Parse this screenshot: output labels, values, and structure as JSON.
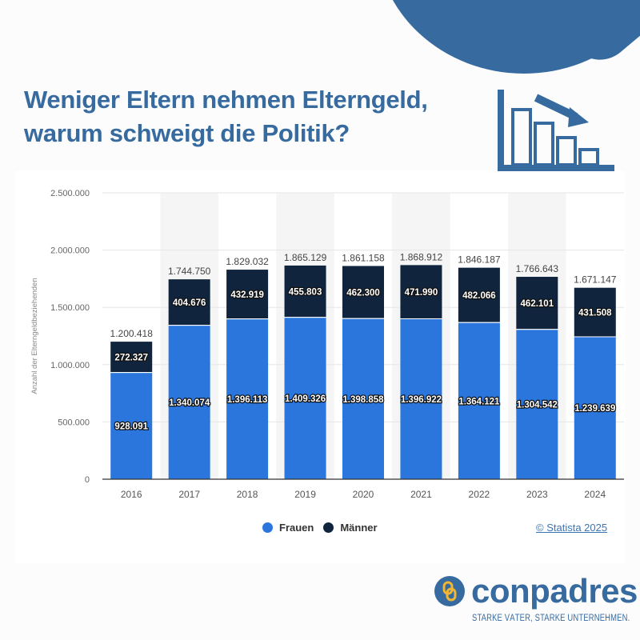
{
  "header": {
    "title_line1": "Weniger Eltern nehmen Elterngeld,",
    "title_line2": "warum schweigt die Politik?",
    "decor_icon": "declining-bar-chart-icon"
  },
  "colors": {
    "brand_blue": "#376b9f",
    "frauen": "#2a76dc",
    "maenner": "#10253d",
    "band": "#f5f5f6",
    "credit_link": "#3c75b5"
  },
  "chart_data": {
    "type": "bar",
    "stacked": true,
    "title": "",
    "xlabel": "",
    "ylabel": "Anzahl der Elterngeldbeziehenden",
    "ylim": [
      0,
      2500000
    ],
    "yticks": [
      0,
      500000,
      1000000,
      1500000,
      2000000,
      2500000
    ],
    "ytick_labels": [
      "0",
      "500.000",
      "1.000.000",
      "1.500.000",
      "2.000.000",
      "2.500.000"
    ],
    "grid": true,
    "categories": [
      "2016",
      "2017",
      "2018",
      "2019",
      "2020",
      "2021",
      "2022",
      "2023",
      "2024"
    ],
    "series": [
      {
        "name": "Frauen",
        "values": [
          928091,
          1340074,
          1396113,
          1409326,
          1398858,
          1396922,
          1364121,
          1304542,
          1239639
        ],
        "labels": [
          "928.091",
          "1.340.074",
          "1.396.113",
          "1.409.326",
          "1.398.858",
          "1.396.922",
          "1.364.121",
          "1.304.542",
          "1.239.639"
        ]
      },
      {
        "name": "Männer",
        "values": [
          272327,
          404676,
          432919,
          455803,
          462300,
          471990,
          482066,
          462101,
          431508
        ],
        "labels": [
          "272.327",
          "404.676",
          "432.919",
          "455.803",
          "462.300",
          "471.990",
          "482.066",
          "462.101",
          "431.508"
        ]
      }
    ],
    "totals": [
      1200418,
      1744750,
      1829032,
      1865129,
      1861158,
      1868912,
      1846187,
      1766643,
      1671147
    ],
    "total_labels": [
      "1.200.418",
      "1.744.750",
      "1.829.032",
      "1.865.129",
      "1.861.158",
      "1.868.912",
      "1.846.187",
      "1.766.643",
      "1.671.147"
    ],
    "legend_placement": "bottom-center"
  },
  "legend": {
    "frauen": "Frauen",
    "maenner": "Männer"
  },
  "credit": "© Statista 2025",
  "brand": {
    "name": "conpadres",
    "tagline": "STARKE VÄTER, STARKE UNTERNEHMEN.",
    "logo_icon": "chain-link-icon"
  }
}
